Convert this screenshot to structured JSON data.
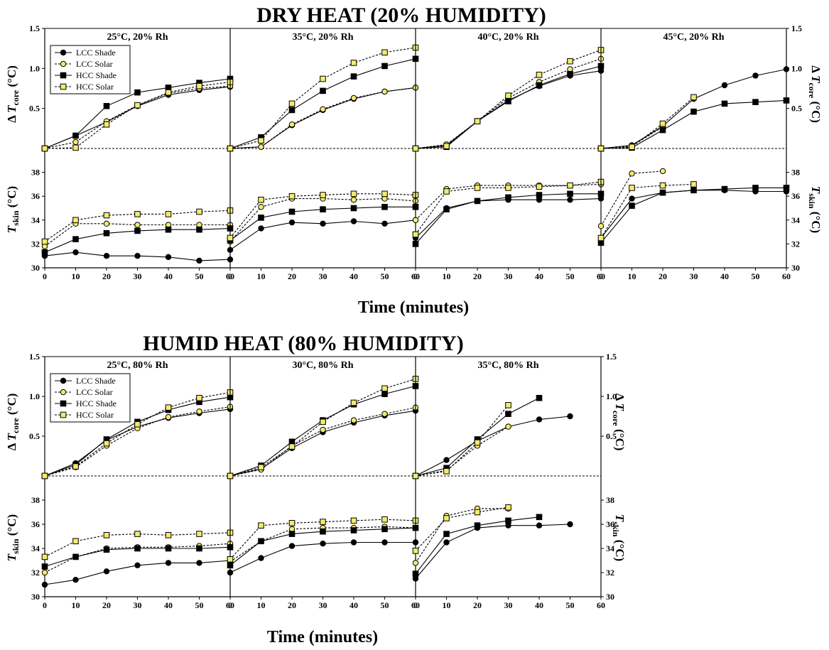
{
  "figure": {
    "section_titles": [
      "DRY HEAT (20% HUMIDITY)",
      "HUMID HEAT  (80% HUMIDITY)"
    ],
    "time_label": "Time (minutes)",
    "core_ylabel": {
      "prefix": "Δ ",
      "var": "T",
      "sub": "core",
      "unit": " (°C)"
    },
    "skin_ylabel": {
      "prefix": "",
      "var": "T",
      "sub": "skin",
      "unit": " (°C)"
    },
    "legend": [
      "LCC Shade",
      "LCC Solar",
      "HCC Shade",
      "HCC Solar"
    ]
  },
  "chart_data": [
    {
      "type": "line",
      "group": "dry",
      "title": "25°C, 20% Rh",
      "x": [
        0,
        10,
        20,
        30,
        40,
        50,
        60
      ],
      "xlim": [
        0,
        60
      ],
      "core_ylim": [
        0,
        1.5
      ],
      "core_yticks": [
        0.5,
        1.0,
        1.5
      ],
      "skin_ylim": [
        30,
        40
      ],
      "skin_yticks": [
        30,
        32,
        34,
        36,
        38
      ],
      "series": [
        {
          "name": "LCC Shade",
          "core": [
            0,
            0.16,
            0.33,
            0.53,
            0.67,
            0.73,
            0.77
          ],
          "skin": [
            31.0,
            31.3,
            31.0,
            31.0,
            30.9,
            30.6,
            30.7
          ]
        },
        {
          "name": "LCC Solar",
          "core": [
            0,
            0.08,
            0.34,
            0.54,
            0.69,
            0.75,
            0.78
          ],
          "skin": [
            31.8,
            33.7,
            33.7,
            33.6,
            33.6,
            33.6,
            33.6
          ]
        },
        {
          "name": "HCC Shade",
          "core": [
            0,
            0.16,
            0.53,
            0.7,
            0.76,
            0.82,
            0.87
          ],
          "skin": [
            31.3,
            32.4,
            32.9,
            33.1,
            33.2,
            33.2,
            33.3
          ]
        },
        {
          "name": "HCC Solar",
          "core": [
            0,
            0.01,
            0.3,
            0.54,
            0.7,
            0.78,
            0.83
          ],
          "skin": [
            32.2,
            34.0,
            34.4,
            34.5,
            34.5,
            34.7,
            34.8
          ]
        }
      ]
    },
    {
      "type": "line",
      "group": "dry",
      "title": "35°C, 20% Rh",
      "x": [
        0,
        10,
        20,
        30,
        40,
        50,
        60
      ],
      "xlim": [
        0,
        60
      ],
      "core_ylim": [
        0,
        1.5
      ],
      "skin_ylim": [
        30,
        40
      ],
      "series": [
        {
          "name": "LCC Shade",
          "core": [
            0,
            0.02,
            0.29,
            0.48,
            0.62,
            0.71,
            0.76
          ],
          "skin": [
            31.5,
            33.3,
            33.8,
            33.7,
            33.9,
            33.7,
            34.0
          ]
        },
        {
          "name": "LCC Solar",
          "core": [
            0,
            0.02,
            0.3,
            0.49,
            0.63,
            0.71,
            0.76
          ],
          "skin": [
            32.2,
            35.1,
            35.8,
            35.8,
            35.7,
            35.8,
            35.6
          ]
        },
        {
          "name": "HCC Shade",
          "core": [
            0,
            0.14,
            0.48,
            0.72,
            0.9,
            1.03,
            1.12
          ],
          "skin": [
            32.3,
            34.2,
            34.7,
            34.9,
            35.0,
            35.1,
            35.1
          ]
        },
        {
          "name": "HCC Solar",
          "core": [
            0,
            0.1,
            0.56,
            0.87,
            1.07,
            1.2,
            1.26
          ],
          "skin": [
            32.5,
            35.7,
            36.0,
            36.1,
            36.2,
            36.2,
            36.1
          ]
        }
      ]
    },
    {
      "type": "line",
      "group": "dry",
      "title": "40°C, 20% Rh",
      "x": [
        0,
        10,
        20,
        30,
        40,
        50,
        60
      ],
      "xlim": [
        0,
        60
      ],
      "core_ylim": [
        0,
        1.5
      ],
      "skin_ylim": [
        30,
        40
      ],
      "series": [
        {
          "name": "LCC Shade",
          "core": [
            0,
            0.04,
            0.34,
            0.6,
            0.78,
            0.91,
            0.97
          ],
          "skin": [
            32.5,
            35.0,
            35.6,
            35.7,
            35.7,
            35.7,
            35.8
          ]
        },
        {
          "name": "LCC Solar",
          "core": [
            0,
            0.05,
            0.34,
            0.63,
            0.83,
            0.99,
            1.12
          ],
          "skin": [
            34.0,
            36.6,
            36.9,
            36.9,
            36.9,
            36.9,
            37.0
          ]
        },
        {
          "name": "HCC Shade",
          "core": [
            0,
            0.02,
            0.34,
            0.59,
            0.79,
            0.93,
            1.03
          ],
          "skin": [
            32.0,
            34.9,
            35.6,
            35.9,
            36.1,
            36.2,
            36.2
          ]
        },
        {
          "name": "HCC Solar",
          "core": [
            0,
            0.03,
            0.34,
            0.66,
            0.92,
            1.09,
            1.23
          ],
          "skin": [
            32.8,
            36.4,
            36.7,
            36.7,
            36.8,
            36.9,
            37.2
          ]
        }
      ]
    },
    {
      "type": "line",
      "group": "dry",
      "title": "45°C, 20% Rh",
      "x": [
        0,
        10,
        20,
        30,
        40,
        50,
        60
      ],
      "xlim": [
        0,
        60
      ],
      "core_ylim": [
        0,
        1.5
      ],
      "core_yticks": [
        0.5,
        1.0,
        1.5
      ],
      "skin_ylim": [
        30,
        40
      ],
      "skin_yticks": [
        30,
        32,
        34,
        36,
        38
      ],
      "series": [
        {
          "name": "LCC Shade",
          "x": [
            0,
            10,
            20,
            30,
            40,
            50,
            60
          ],
          "core": [
            0,
            0.04,
            0.28,
            0.62,
            0.79,
            0.91,
            0.99
          ],
          "skin": [
            32.5,
            35.8,
            36.3,
            36.5,
            36.5,
            36.4,
            36.4
          ]
        },
        {
          "name": "LCC Solar",
          "x": [
            0,
            10,
            20
          ],
          "core": [
            0,
            0.03,
            0.27
          ],
          "skin": [
            33.5,
            37.9,
            38.1
          ]
        },
        {
          "name": "HCC Shade",
          "x": [
            0,
            10,
            20,
            30,
            40,
            50,
            60
          ],
          "core": [
            0,
            0.01,
            0.23,
            0.46,
            0.56,
            0.58,
            0.6
          ],
          "skin": [
            32.1,
            35.2,
            36.3,
            36.5,
            36.6,
            36.7,
            36.7
          ]
        },
        {
          "name": "HCC Solar",
          "x": [
            0,
            10,
            20,
            30
          ],
          "core": [
            0,
            0.02,
            0.31,
            0.64
          ],
          "skin": [
            32.5,
            36.7,
            36.9,
            37.0
          ]
        }
      ]
    },
    {
      "type": "line",
      "group": "humid",
      "title": "25°C, 80% Rh",
      "x": [
        0,
        10,
        20,
        30,
        40,
        50,
        60
      ],
      "xlim": [
        0,
        60
      ],
      "core_ylim": [
        0,
        1.5
      ],
      "core_yticks": [
        0.5,
        1.0,
        1.5
      ],
      "skin_ylim": [
        30,
        40
      ],
      "skin_yticks": [
        30,
        32,
        34,
        36,
        38
      ],
      "series": [
        {
          "name": "LCC Shade",
          "core": [
            0,
            0.16,
            0.45,
            0.62,
            0.73,
            0.79,
            0.84
          ],
          "skin": [
            31.0,
            31.4,
            32.1,
            32.6,
            32.8,
            32.8,
            33.0
          ]
        },
        {
          "name": "LCC Solar",
          "core": [
            0,
            0.11,
            0.38,
            0.6,
            0.74,
            0.81,
            0.87
          ],
          "skin": [
            32.0,
            33.3,
            34.0,
            34.1,
            34.1,
            34.2,
            34.4
          ]
        },
        {
          "name": "HCC Shade",
          "core": [
            0,
            0.14,
            0.46,
            0.68,
            0.83,
            0.93,
            0.99
          ],
          "skin": [
            32.5,
            33.3,
            33.9,
            34.0,
            34.0,
            34.0,
            34.1
          ]
        },
        {
          "name": "HCC Solar",
          "core": [
            0,
            0.12,
            0.41,
            0.65,
            0.86,
            0.98,
            1.05
          ],
          "skin": [
            33.3,
            34.6,
            35.1,
            35.2,
            35.1,
            35.2,
            35.3
          ]
        }
      ]
    },
    {
      "type": "line",
      "group": "humid",
      "title": "30°C, 80% Rh",
      "x": [
        0,
        10,
        20,
        30,
        40,
        50,
        60
      ],
      "xlim": [
        0,
        60
      ],
      "core_ylim": [
        0,
        1.5
      ],
      "skin_ylim": [
        30,
        40
      ],
      "series": [
        {
          "name": "LCC Shade",
          "core": [
            0,
            0.09,
            0.35,
            0.55,
            0.67,
            0.76,
            0.82
          ],
          "skin": [
            32.0,
            33.2,
            34.2,
            34.4,
            34.5,
            34.5,
            34.5
          ]
        },
        {
          "name": "LCC Solar",
          "core": [
            0,
            0.08,
            0.38,
            0.58,
            0.7,
            0.78,
            0.86
          ],
          "skin": [
            32.9,
            34.6,
            35.6,
            35.7,
            35.7,
            35.8,
            35.7
          ]
        },
        {
          "name": "HCC Shade",
          "core": [
            0,
            0.13,
            0.43,
            0.7,
            0.9,
            1.03,
            1.13
          ],
          "skin": [
            32.6,
            34.6,
            35.2,
            35.4,
            35.5,
            35.6,
            35.7
          ]
        },
        {
          "name": "HCC Solar",
          "core": [
            0,
            0.11,
            0.37,
            0.68,
            0.92,
            1.1,
            1.22
          ],
          "skin": [
            33.1,
            35.9,
            36.1,
            36.2,
            36.3,
            36.4,
            36.3
          ]
        }
      ]
    },
    {
      "type": "line",
      "group": "humid",
      "title": "35°C, 80% Rh",
      "x": [
        0,
        10,
        20,
        30,
        40,
        50,
        60
      ],
      "xlim": [
        0,
        60
      ],
      "core_ylim": [
        0,
        1.5
      ],
      "core_yticks": [
        0.5,
        1.0,
        1.5
      ],
      "skin_ylim": [
        30,
        40
      ],
      "skin_yticks": [
        30,
        32,
        34,
        36,
        38
      ],
      "series": [
        {
          "name": "LCC Shade",
          "x": [
            0,
            10,
            20,
            30,
            40,
            50
          ],
          "core": [
            0,
            0.2,
            0.44,
            0.62,
            0.71,
            0.75
          ],
          "skin": [
            31.5,
            34.5,
            35.7,
            35.9,
            35.9,
            36.0
          ]
        },
        {
          "name": "LCC Solar",
          "x": [
            0,
            10,
            20,
            30
          ],
          "core": [
            0,
            0.07,
            0.38,
            0.62
          ],
          "skin": [
            32.8,
            36.7,
            37.3,
            37.3
          ]
        },
        {
          "name": "HCC Shade",
          "x": [
            0,
            10,
            20,
            30,
            40
          ],
          "core": [
            0,
            0.1,
            0.46,
            0.78,
            0.98
          ],
          "skin": [
            31.9,
            35.2,
            35.9,
            36.3,
            36.6
          ]
        },
        {
          "name": "HCC Solar",
          "x": [
            0,
            10,
            20,
            30
          ],
          "core": [
            0,
            0.06,
            0.42,
            0.89
          ],
          "skin": [
            33.8,
            36.5,
            37.0,
            37.4
          ]
        }
      ]
    }
  ]
}
